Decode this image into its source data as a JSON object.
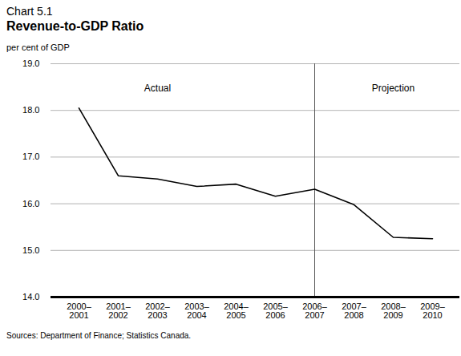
{
  "chart_data": {
    "type": "line",
    "subtitle": "Chart 5.1",
    "title": "Revenue-to-GDP Ratio",
    "y_label": "per cent of GDP",
    "caption": "Sources: Department of Finance; Statistics Canada.",
    "categories": [
      "2000–2001",
      "2001–2002",
      "2002–2003",
      "2003–2004",
      "2004–2005",
      "2005–2006",
      "2006–2007",
      "2007–2008",
      "2008–2009",
      "2009–2010"
    ],
    "values": [
      18.05,
      16.6,
      16.53,
      16.37,
      16.42,
      16.16,
      16.31,
      15.98,
      15.28,
      15.25
    ],
    "color": "#000000",
    "ylim": [
      14,
      19
    ],
    "yticks": [
      14,
      15,
      16,
      17,
      18,
      19
    ],
    "grid": true,
    "annotations": [
      {
        "text": "Actual",
        "x": "2002–2003"
      },
      {
        "text": "Projection",
        "x": "2008–2009"
      },
      {
        "x": "2006–2007",
        "line_style": "dashed"
      }
    ]
  }
}
